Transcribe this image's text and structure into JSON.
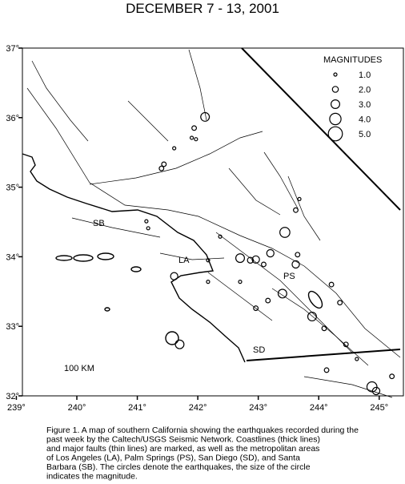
{
  "chart_data": {
    "type": "scatter",
    "title": "DECEMBER 7 - 13, 2001",
    "xlim": [
      239.1,
      245.4
    ],
    "ylim": [
      32,
      37
    ],
    "xticks": [
      {
        "value": 239,
        "label": "239°"
      },
      {
        "value": 240,
        "label": "240°"
      },
      {
        "value": 241,
        "label": "241°"
      },
      {
        "value": 242,
        "label": "242°"
      },
      {
        "value": 243,
        "label": "243°"
      },
      {
        "value": 244,
        "label": "244°"
      },
      {
        "value": 245,
        "label": "245°"
      }
    ],
    "yticks": [
      {
        "value": 32,
        "label": "32°"
      },
      {
        "value": 33,
        "label": "33°"
      },
      {
        "value": 34,
        "label": "34°"
      },
      {
        "value": 35,
        "label": "35°"
      },
      {
        "value": 36,
        "label": "36°"
      },
      {
        "value": 37,
        "label": "37°"
      }
    ],
    "x": [
      242.12,
      241.94,
      241.9,
      241.97,
      241.61,
      241.4,
      241.44,
      241.15,
      241.18,
      242.37,
      242.7,
      242.87,
      242.96,
      243.2,
      243.09,
      243.44,
      243.62,
      243.68,
      243.62,
      243.65,
      243.4,
      243.16,
      242.96,
      242.7,
      242.17,
      241.61,
      241.7,
      243.89,
      244.35,
      244.09,
      244.45,
      244.13,
      244.88,
      244.95,
      245.21,
      244.21,
      242.17,
      244.63
    ],
    "y": [
      36.01,
      35.85,
      35.71,
      35.69,
      35.56,
      35.27,
      35.33,
      34.51,
      34.41,
      34.29,
      33.98,
      33.95,
      33.96,
      34.05,
      33.89,
      34.35,
      34.67,
      34.83,
      33.89,
      34.03,
      33.47,
      33.37,
      33.26,
      33.64,
      33.64,
      33.72,
      32.74,
      33.14,
      33.34,
      32.97,
      32.74,
      32.37,
      32.13,
      32.07,
      32.28,
      33.6,
      33.95,
      32.53
    ],
    "sizes": [
      3,
      1.5,
      1,
      1,
      1,
      1.5,
      1.5,
      1,
      1,
      1,
      3,
      2,
      2.5,
      2.5,
      1.5,
      3.5,
      1.5,
      1,
      2.5,
      1.5,
      3,
      1.5,
      1.5,
      1,
      1,
      2.5,
      3,
      3,
      1.5,
      1.5,
      1.5,
      1.5,
      3.5,
      2.5,
      1.5,
      1.5,
      1,
      1
    ],
    "color": "#000000",
    "legend_title": "MAGNITUDES",
    "legend_magnitudes": [
      {
        "value": 1,
        "label": "1.0"
      },
      {
        "value": 2,
        "label": "2.0"
      },
      {
        "value": 3,
        "label": "3.0"
      },
      {
        "value": 4,
        "label": "4.0"
      },
      {
        "value": 5,
        "label": "5.0"
      }
    ],
    "labels": [
      "SB",
      "LA",
      "PS",
      "SD",
      "100 KM"
    ],
    "caption": [
      "Figure 1. A map of southern California showing the earthquakes recorded during the",
      "past week by the Caltech/USGS Seismic Network.  Coastlines (thick lines)",
      "and major faults (thin lines) are marked, as well as the metropolitan areas",
      "of Los Angeles (LA), Palm Springs (PS), San Diego (SD), and Santa",
      "Barbara (SB).  The circles denote the earthquakes, the size of the circle",
      "indicates the magnitude."
    ]
  }
}
